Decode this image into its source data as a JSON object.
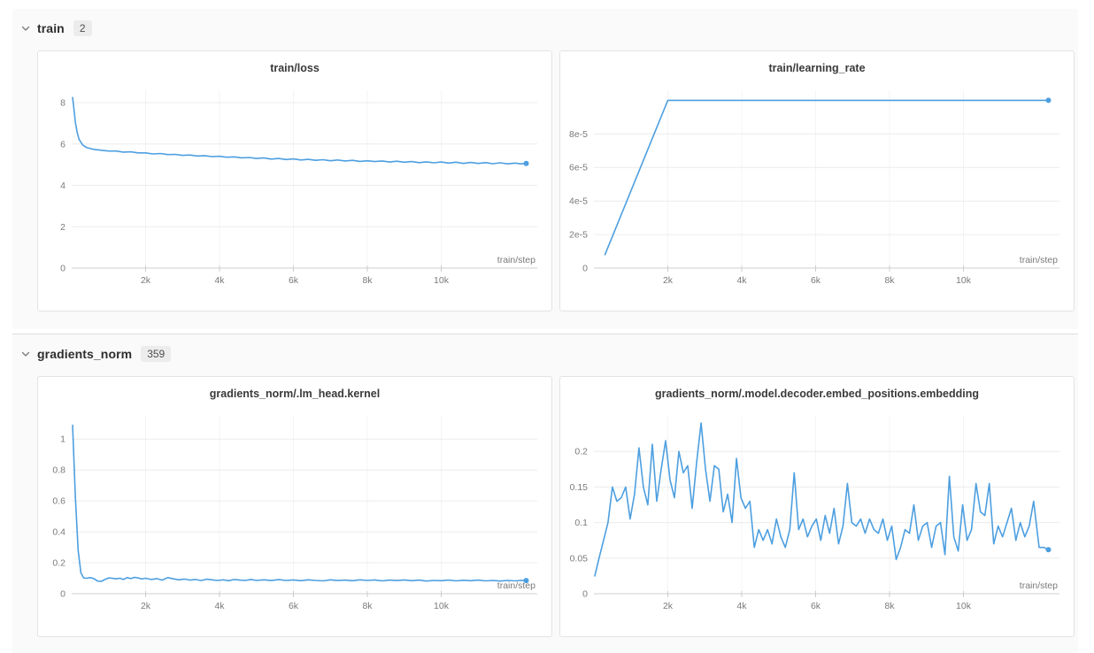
{
  "page": {
    "background": "#ffffff",
    "panel_background": "#fafafa",
    "accent_blue": "#4d9fe0"
  },
  "sections": [
    {
      "label": "train",
      "count": "2",
      "chart_indexes": [
        0,
        1
      ]
    },
    {
      "label": "gradients_norm",
      "count": "359",
      "chart_indexes": [
        2,
        3
      ]
    }
  ],
  "chart_data": [
    {
      "type": "line",
      "title": "train/loss",
      "xlabel": "train/step",
      "series_color": "#4d9fe0",
      "xlim": [
        0,
        12600
      ],
      "ylim": [
        0,
        8.6
      ],
      "grid": true,
      "end_marker": true,
      "xticks": [
        [
          2000,
          "2k"
        ],
        [
          4000,
          "4k"
        ],
        [
          6000,
          "6k"
        ],
        [
          8000,
          "8k"
        ],
        [
          10000,
          "10k"
        ]
      ],
      "yticks": [
        [
          0,
          "0"
        ],
        [
          2,
          "2"
        ],
        [
          4,
          "4"
        ],
        [
          6,
          "6"
        ],
        [
          8,
          "8"
        ]
      ],
      "points": [
        [
          25,
          8.25
        ],
        [
          50,
          7.86
        ],
        [
          100,
          7.04
        ],
        [
          150,
          6.54
        ],
        [
          200,
          6.23
        ],
        [
          300,
          5.95
        ],
        [
          400,
          5.83
        ],
        [
          500,
          5.78
        ],
        [
          600,
          5.74
        ],
        [
          800,
          5.7
        ],
        [
          1000,
          5.66
        ],
        [
          1200,
          5.66
        ],
        [
          1400,
          5.61
        ],
        [
          1600,
          5.62
        ],
        [
          1800,
          5.57
        ],
        [
          2000,
          5.57
        ],
        [
          2200,
          5.52
        ],
        [
          2400,
          5.54
        ],
        [
          2600,
          5.49
        ],
        [
          2800,
          5.5
        ],
        [
          3000,
          5.45
        ],
        [
          3200,
          5.47
        ],
        [
          3400,
          5.42
        ],
        [
          3600,
          5.44
        ],
        [
          3800,
          5.39
        ],
        [
          4000,
          5.41
        ],
        [
          4200,
          5.36
        ],
        [
          4400,
          5.38
        ],
        [
          4600,
          5.33
        ],
        [
          4800,
          5.35
        ],
        [
          5000,
          5.3
        ],
        [
          5200,
          5.33
        ],
        [
          5400,
          5.27
        ],
        [
          5600,
          5.3
        ],
        [
          5800,
          5.25
        ],
        [
          6000,
          5.28
        ],
        [
          6200,
          5.23
        ],
        [
          6400,
          5.26
        ],
        [
          6600,
          5.21
        ],
        [
          6800,
          5.24
        ],
        [
          7000,
          5.19
        ],
        [
          7200,
          5.23
        ],
        [
          7400,
          5.18
        ],
        [
          7600,
          5.21
        ],
        [
          7800,
          5.16
        ],
        [
          8000,
          5.19
        ],
        [
          8200,
          5.15
        ],
        [
          8400,
          5.18
        ],
        [
          8600,
          5.13
        ],
        [
          8800,
          5.17
        ],
        [
          9000,
          5.12
        ],
        [
          9200,
          5.15
        ],
        [
          9400,
          5.1
        ],
        [
          9600,
          5.14
        ],
        [
          9800,
          5.09
        ],
        [
          10000,
          5.13
        ],
        [
          10200,
          5.08
        ],
        [
          10400,
          5.12
        ],
        [
          10600,
          5.06
        ],
        [
          10800,
          5.11
        ],
        [
          11000,
          5.06
        ],
        [
          11200,
          5.1
        ],
        [
          11400,
          5.05
        ],
        [
          11600,
          5.09
        ],
        [
          11800,
          5.04
        ],
        [
          12000,
          5.08
        ],
        [
          12150,
          5.04
        ],
        [
          12300,
          5.06
        ]
      ]
    },
    {
      "type": "line",
      "title": "train/learning_rate",
      "xlabel": "train/step",
      "series_color": "#4d9fe0",
      "xlim": [
        0,
        12600
      ],
      "ylim": [
        0,
        0.000106
      ],
      "grid": true,
      "end_marker": true,
      "xticks": [
        [
          2000,
          "2k"
        ],
        [
          4000,
          "4k"
        ],
        [
          6000,
          "6k"
        ],
        [
          8000,
          "8k"
        ],
        [
          10000,
          "10k"
        ]
      ],
      "yticks": [
        [
          0,
          "0"
        ],
        [
          2e-05,
          "2e-5"
        ],
        [
          4e-05,
          "4e-5"
        ],
        [
          6e-05,
          "6e-5"
        ],
        [
          8e-05,
          "8e-5"
        ]
      ],
      "points": [
        [
          300,
          8e-06
        ],
        [
          2000,
          0.0001
        ],
        [
          12300,
          0.0001
        ]
      ]
    },
    {
      "type": "line",
      "title": "gradients_norm/.lm_head.kernel",
      "xlabel": "train/step",
      "series_color": "#4d9fe0",
      "xlim": [
        0,
        12600
      ],
      "ylim": [
        0,
        1.15
      ],
      "grid": true,
      "end_marker": true,
      "xticks": [
        [
          2000,
          "2k"
        ],
        [
          4000,
          "4k"
        ],
        [
          6000,
          "6k"
        ],
        [
          8000,
          "8k"
        ],
        [
          10000,
          "10k"
        ]
      ],
      "yticks": [
        [
          0,
          "0"
        ],
        [
          0.2,
          "0.2"
        ],
        [
          0.4,
          "0.4"
        ],
        [
          0.6,
          "0.6"
        ],
        [
          0.8,
          "0.8"
        ],
        [
          1,
          "1"
        ]
      ],
      "points": [
        [
          25,
          1.09
        ],
        [
          100,
          0.62
        ],
        [
          175,
          0.28
        ],
        [
          250,
          0.135
        ],
        [
          325,
          0.102
        ],
        [
          400,
          0.1
        ],
        [
          500,
          0.104
        ],
        [
          600,
          0.098
        ],
        [
          700,
          0.082
        ],
        [
          800,
          0.08
        ],
        [
          900,
          0.092
        ],
        [
          1000,
          0.102
        ],
        [
          1100,
          0.1
        ],
        [
          1200,
          0.096
        ],
        [
          1300,
          0.1
        ],
        [
          1400,
          0.092
        ],
        [
          1500,
          0.104
        ],
        [
          1600,
          0.098
        ],
        [
          1700,
          0.106
        ],
        [
          1800,
          0.102
        ],
        [
          1900,
          0.095
        ],
        [
          2000,
          0.1
        ],
        [
          2150,
          0.092
        ],
        [
          2300,
          0.098
        ],
        [
          2450,
          0.088
        ],
        [
          2600,
          0.104
        ],
        [
          2750,
          0.096
        ],
        [
          2900,
          0.09
        ],
        [
          3050,
          0.095
        ],
        [
          3200,
          0.088
        ],
        [
          3350,
          0.092
        ],
        [
          3500,
          0.085
        ],
        [
          3650,
          0.094
        ],
        [
          3800,
          0.09
        ],
        [
          3950,
          0.086
        ],
        [
          4100,
          0.09
        ],
        [
          4250,
          0.084
        ],
        [
          4400,
          0.092
        ],
        [
          4550,
          0.088
        ],
        [
          4700,
          0.086
        ],
        [
          4850,
          0.092
        ],
        [
          5000,
          0.086
        ],
        [
          5200,
          0.09
        ],
        [
          5400,
          0.085
        ],
        [
          5600,
          0.091
        ],
        [
          5800,
          0.086
        ],
        [
          6000,
          0.089
        ],
        [
          6200,
          0.084
        ],
        [
          6400,
          0.09
        ],
        [
          6600,
          0.086
        ],
        [
          6800,
          0.083
        ],
        [
          7000,
          0.09
        ],
        [
          7200,
          0.085
        ],
        [
          7400,
          0.088
        ],
        [
          7600,
          0.084
        ],
        [
          7800,
          0.09
        ],
        [
          8000,
          0.086
        ],
        [
          8200,
          0.089
        ],
        [
          8400,
          0.083
        ],
        [
          8600,
          0.088
        ],
        [
          8800,
          0.085
        ],
        [
          9000,
          0.089
        ],
        [
          9200,
          0.084
        ],
        [
          9400,
          0.088
        ],
        [
          9600,
          0.082
        ],
        [
          9800,
          0.086
        ],
        [
          10000,
          0.084
        ],
        [
          10200,
          0.088
        ],
        [
          10400,
          0.083
        ],
        [
          10600,
          0.087
        ],
        [
          10800,
          0.084
        ],
        [
          11000,
          0.088
        ],
        [
          11200,
          0.083
        ],
        [
          11400,
          0.086
        ],
        [
          11600,
          0.082
        ],
        [
          11800,
          0.086
        ],
        [
          12000,
          0.083
        ],
        [
          12150,
          0.086
        ],
        [
          12300,
          0.085
        ]
      ]
    },
    {
      "type": "line",
      "title": "gradients_norm/.model.decoder.embed_positions.embedding",
      "xlabel": "train/step",
      "series_color": "#4d9fe0",
      "xlim": [
        0,
        12600
      ],
      "ylim": [
        0,
        0.25
      ],
      "grid": true,
      "end_marker": true,
      "xticks": [
        [
          2000,
          "2k"
        ],
        [
          4000,
          "4k"
        ],
        [
          6000,
          "6k"
        ],
        [
          8000,
          "8k"
        ],
        [
          10000,
          "10k"
        ]
      ],
      "yticks": [
        [
          0,
          "0"
        ],
        [
          0.05,
          "0.05"
        ],
        [
          0.1,
          "0.1"
        ],
        [
          0.15,
          "0.15"
        ],
        [
          0.2,
          "0.2"
        ]
      ],
      "points": [
        [
          25,
          0.025
        ],
        [
          140,
          0.05
        ],
        [
          260,
          0.075
        ],
        [
          380,
          0.1
        ],
        [
          500,
          0.15
        ],
        [
          620,
          0.13
        ],
        [
          740,
          0.135
        ],
        [
          860,
          0.15
        ],
        [
          980,
          0.105
        ],
        [
          1100,
          0.14
        ],
        [
          1220,
          0.205
        ],
        [
          1340,
          0.15
        ],
        [
          1460,
          0.125
        ],
        [
          1580,
          0.21
        ],
        [
          1700,
          0.13
        ],
        [
          1820,
          0.175
        ],
        [
          1940,
          0.215
        ],
        [
          2060,
          0.16
        ],
        [
          2180,
          0.135
        ],
        [
          2300,
          0.2
        ],
        [
          2420,
          0.17
        ],
        [
          2540,
          0.18
        ],
        [
          2660,
          0.12
        ],
        [
          2780,
          0.185
        ],
        [
          2900,
          0.24
        ],
        [
          3020,
          0.175
        ],
        [
          3140,
          0.13
        ],
        [
          3260,
          0.18
        ],
        [
          3380,
          0.175
        ],
        [
          3500,
          0.115
        ],
        [
          3620,
          0.14
        ],
        [
          3740,
          0.1
        ],
        [
          3860,
          0.19
        ],
        [
          3980,
          0.135
        ],
        [
          4100,
          0.12
        ],
        [
          4220,
          0.13
        ],
        [
          4340,
          0.065
        ],
        [
          4460,
          0.09
        ],
        [
          4580,
          0.075
        ],
        [
          4700,
          0.09
        ],
        [
          4820,
          0.07
        ],
        [
          4940,
          0.105
        ],
        [
          5060,
          0.08
        ],
        [
          5180,
          0.065
        ],
        [
          5300,
          0.09
        ],
        [
          5420,
          0.17
        ],
        [
          5540,
          0.09
        ],
        [
          5660,
          0.105
        ],
        [
          5780,
          0.08
        ],
        [
          5900,
          0.095
        ],
        [
          6020,
          0.105
        ],
        [
          6140,
          0.075
        ],
        [
          6260,
          0.11
        ],
        [
          6380,
          0.085
        ],
        [
          6500,
          0.12
        ],
        [
          6620,
          0.07
        ],
        [
          6740,
          0.095
        ],
        [
          6860,
          0.155
        ],
        [
          6980,
          0.1
        ],
        [
          7100,
          0.095
        ],
        [
          7220,
          0.105
        ],
        [
          7340,
          0.085
        ],
        [
          7460,
          0.105
        ],
        [
          7580,
          0.09
        ],
        [
          7700,
          0.085
        ],
        [
          7820,
          0.105
        ],
        [
          7940,
          0.075
        ],
        [
          8060,
          0.095
        ],
        [
          8180,
          0.048
        ],
        [
          8300,
          0.065
        ],
        [
          8420,
          0.09
        ],
        [
          8540,
          0.085
        ],
        [
          8660,
          0.125
        ],
        [
          8780,
          0.075
        ],
        [
          8900,
          0.095
        ],
        [
          9020,
          0.1
        ],
        [
          9140,
          0.065
        ],
        [
          9260,
          0.095
        ],
        [
          9380,
          0.1
        ],
        [
          9500,
          0.055
        ],
        [
          9620,
          0.165
        ],
        [
          9740,
          0.08
        ],
        [
          9860,
          0.06
        ],
        [
          9980,
          0.125
        ],
        [
          10100,
          0.075
        ],
        [
          10220,
          0.09
        ],
        [
          10340,
          0.155
        ],
        [
          10460,
          0.115
        ],
        [
          10580,
          0.11
        ],
        [
          10700,
          0.155
        ],
        [
          10820,
          0.07
        ],
        [
          10940,
          0.095
        ],
        [
          11060,
          0.08
        ],
        [
          11180,
          0.1
        ],
        [
          11300,
          0.12
        ],
        [
          11420,
          0.075
        ],
        [
          11540,
          0.1
        ],
        [
          11660,
          0.08
        ],
        [
          11780,
          0.095
        ],
        [
          11900,
          0.13
        ],
        [
          12050,
          0.065
        ],
        [
          12180,
          0.065
        ],
        [
          12300,
          0.062
        ]
      ]
    }
  ]
}
